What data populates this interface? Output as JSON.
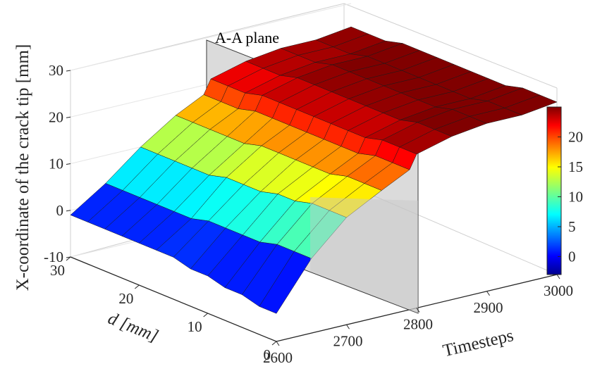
{
  "chart_data": {
    "type": "surface",
    "zlabel": "X-coordinate of the crack tip [mm]",
    "xlabel": "Timesteps",
    "ylabel": "d [mm]",
    "annotation": "A-A plane",
    "ylim": [
      0,
      30
    ],
    "xlim": [
      2600,
      3000
    ],
    "zlim": [
      -10,
      30
    ],
    "z_ticks": [
      "-10",
      "0",
      "10",
      "20",
      "30"
    ],
    "d_ticks": [
      "0",
      "10",
      "20",
      "30"
    ],
    "t_ticks": [
      "2600",
      "2700",
      "2800",
      "2900",
      "3000"
    ],
    "colorbar": {
      "colormap": "jet",
      "range": [
        -3,
        25
      ],
      "ticks": [
        "0",
        "5",
        "10",
        "15",
        "20"
      ]
    },
    "plane_timestep": 2800,
    "d_values": [
      0,
      2.5,
      5,
      7.5,
      10,
      12.5,
      15,
      17.5,
      20,
      22.5,
      25,
      27.5,
      30
    ],
    "t_values": [
      2600,
      2650,
      2700,
      2750,
      2790,
      2800,
      2850,
      2900,
      2950,
      3000
    ],
    "z_surface": [
      [
        -4,
        6,
        13,
        17,
        20,
        23,
        25,
        26,
        26,
        27
      ],
      [
        -4,
        6,
        13,
        17,
        20,
        23,
        25,
        26,
        26,
        27
      ],
      [
        -3,
        6,
        13,
        17,
        20,
        23,
        25,
        26,
        26,
        27
      ],
      [
        -3,
        5,
        12,
        16,
        19,
        22,
        24,
        25,
        25,
        26
      ],
      [
        -2,
        5,
        12,
        16,
        19,
        22,
        24,
        25,
        25,
        26
      ],
      [
        -2,
        5,
        11,
        16,
        19,
        22,
        24,
        25,
        25,
        26
      ],
      [
        -1,
        5,
        11,
        16,
        19,
        22,
        24,
        25,
        25,
        26
      ],
      [
        -1,
        4,
        11,
        16,
        19,
        22,
        24,
        25,
        25,
        26
      ],
      [
        -1,
        4,
        10,
        15,
        19,
        22,
        24,
        25,
        25,
        26
      ],
      [
        -1,
        4,
        10,
        15,
        19,
        22,
        24,
        25,
        25,
        26
      ],
      [
        -1,
        4,
        10,
        15,
        18,
        21,
        23,
        24,
        24,
        25
      ],
      [
        -1,
        4,
        10,
        15,
        18,
        21,
        23,
        24,
        24,
        25
      ],
      [
        -1,
        4,
        10,
        15,
        18,
        21,
        23,
        24,
        24,
        25
      ]
    ]
  }
}
